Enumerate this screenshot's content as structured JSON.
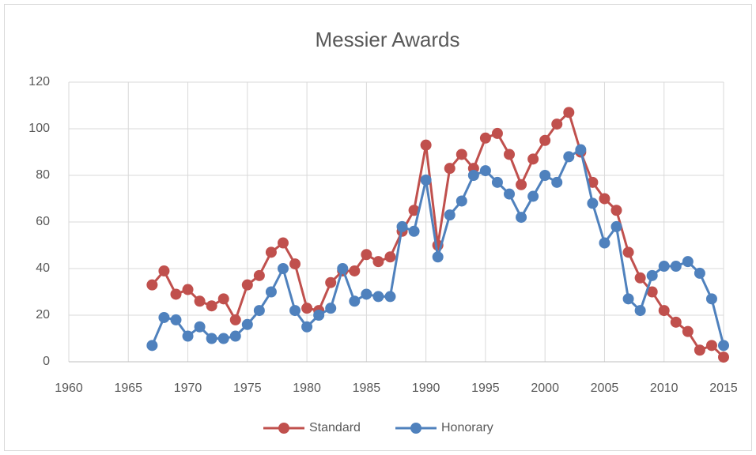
{
  "chart_data": {
    "type": "line",
    "title": "Messier Awards",
    "x": [
      1967,
      1968,
      1969,
      1970,
      1971,
      1972,
      1973,
      1974,
      1975,
      1976,
      1977,
      1978,
      1979,
      1980,
      1981,
      1982,
      1983,
      1984,
      1985,
      1986,
      1987,
      1988,
      1989,
      1990,
      1991,
      1992,
      1993,
      1994,
      1995,
      1996,
      1997,
      1998,
      1999,
      2000,
      2001,
      2002,
      2003,
      2004,
      2005,
      2006,
      2007,
      2008,
      2009,
      2010,
      2011,
      2012,
      2013,
      2014,
      2015
    ],
    "series": [
      {
        "name": "Standard",
        "color": "#c0504d",
        "values": [
          33,
          39,
          29,
          31,
          26,
          24,
          27,
          18,
          33,
          37,
          47,
          51,
          42,
          23,
          22,
          34,
          39,
          39,
          46,
          43,
          45,
          56,
          65,
          93,
          50,
          83,
          89,
          83,
          96,
          98,
          89,
          76,
          87,
          95,
          102,
          107,
          90,
          77,
          70,
          65,
          47,
          36,
          30,
          22,
          17,
          13,
          5,
          7,
          2
        ]
      },
      {
        "name": "Honorary",
        "color": "#4f81bd",
        "values": [
          7,
          19,
          18,
          11,
          15,
          10,
          10,
          11,
          16,
          22,
          30,
          40,
          22,
          15,
          20,
          23,
          40,
          26,
          29,
          28,
          28,
          58,
          56,
          78,
          45,
          63,
          69,
          80,
          82,
          77,
          72,
          62,
          71,
          80,
          77,
          88,
          91,
          68,
          51,
          58,
          27,
          22,
          37,
          41,
          41,
          43,
          38,
          27,
          7
        ]
      }
    ],
    "xlim": [
      1960,
      2015
    ],
    "xticks": [
      1960,
      1965,
      1970,
      1975,
      1980,
      1985,
      1990,
      1995,
      2000,
      2005,
      2010,
      2015
    ],
    "ylim": [
      0,
      120
    ],
    "yticks": [
      0,
      20,
      40,
      60,
      80,
      100,
      120
    ],
    "grid": true,
    "legend": "bottom"
  }
}
